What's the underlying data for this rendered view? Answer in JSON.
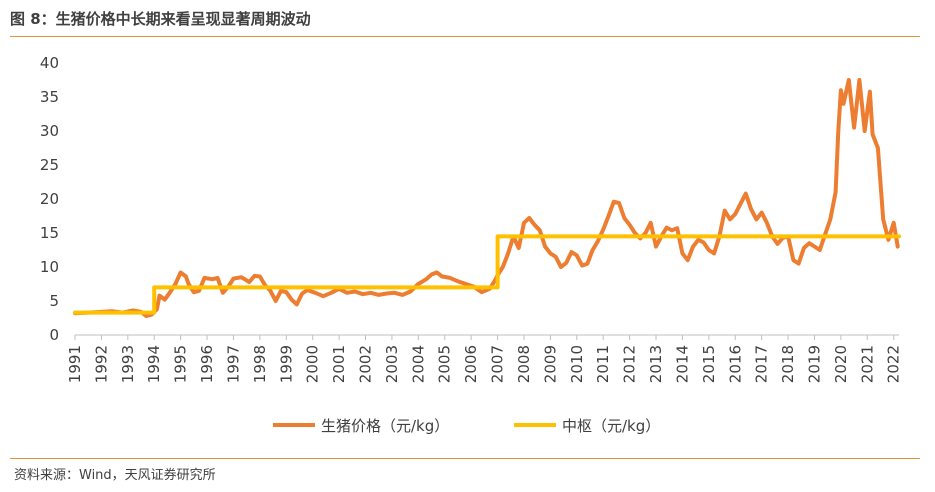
{
  "title": "图 8：生猪价格中长期来看呈现显著周期波动",
  "source": "资料来源：Wind，天风证券研究所",
  "colors": {
    "price": "#ED7D31",
    "center": "#FFC000",
    "axis": "#BFBFBF",
    "rule": "#D79B32"
  },
  "chart_data": {
    "type": "line",
    "ylim": [
      0,
      40
    ],
    "yticks": [
      0,
      5,
      10,
      15,
      20,
      25,
      30,
      35,
      40
    ],
    "xlim": [
      1991,
      2022.2
    ],
    "xticks": [
      "1991",
      "1992",
      "1993",
      "1994",
      "1995",
      "1996",
      "1997",
      "1998",
      "1999",
      "2000",
      "2001",
      "2002",
      "2003",
      "2004",
      "2005",
      "2006",
      "2007",
      "2008",
      "2009",
      "2010",
      "2011",
      "2012",
      "2013",
      "2014",
      "2015",
      "2016",
      "2017",
      "2018",
      "2019",
      "2020",
      "2021",
      "2022"
    ],
    "grid": false,
    "legend_position": "bottom",
    "series": [
      {
        "name": "生猪价格（元/kg）",
        "color": "#ED7D31",
        "points": [
          [
            1991.0,
            3.2
          ],
          [
            1991.5,
            3.3
          ],
          [
            1992.0,
            3.4
          ],
          [
            1992.4,
            3.5
          ],
          [
            1992.8,
            3.3
          ],
          [
            1993.2,
            3.6
          ],
          [
            1993.5,
            3.4
          ],
          [
            1993.7,
            2.8
          ],
          [
            1993.9,
            3.0
          ],
          [
            1994.1,
            3.8
          ],
          [
            1994.2,
            5.8
          ],
          [
            1994.4,
            5.2
          ],
          [
            1994.6,
            6.3
          ],
          [
            1994.8,
            7.5
          ],
          [
            1995.0,
            9.2
          ],
          [
            1995.2,
            8.6
          ],
          [
            1995.3,
            7.5
          ],
          [
            1995.5,
            6.3
          ],
          [
            1995.7,
            6.5
          ],
          [
            1995.9,
            8.4
          ],
          [
            1996.2,
            8.2
          ],
          [
            1996.4,
            8.4
          ],
          [
            1996.6,
            6.2
          ],
          [
            1996.8,
            7.1
          ],
          [
            1997.0,
            8.3
          ],
          [
            1997.3,
            8.5
          ],
          [
            1997.6,
            7.8
          ],
          [
            1997.8,
            8.7
          ],
          [
            1998.0,
            8.6
          ],
          [
            1998.2,
            7.3
          ],
          [
            1998.4,
            6.5
          ],
          [
            1998.6,
            5.0
          ],
          [
            1998.8,
            6.5
          ],
          [
            1999.0,
            6.3
          ],
          [
            1999.2,
            5.2
          ],
          [
            1999.4,
            4.5
          ],
          [
            1999.6,
            6.1
          ],
          [
            1999.8,
            6.6
          ],
          [
            2000.1,
            6.2
          ],
          [
            2000.4,
            5.7
          ],
          [
            2000.7,
            6.2
          ],
          [
            2001.0,
            6.8
          ],
          [
            2001.3,
            6.2
          ],
          [
            2001.6,
            6.4
          ],
          [
            2001.9,
            6.0
          ],
          [
            2002.2,
            6.2
          ],
          [
            2002.5,
            5.9
          ],
          [
            2002.8,
            6.1
          ],
          [
            2003.1,
            6.2
          ],
          [
            2003.4,
            5.9
          ],
          [
            2003.7,
            6.4
          ],
          [
            2004.0,
            7.5
          ],
          [
            2004.3,
            8.2
          ],
          [
            2004.5,
            8.9
          ],
          [
            2004.7,
            9.2
          ],
          [
            2004.9,
            8.6
          ],
          [
            2005.2,
            8.4
          ],
          [
            2005.5,
            7.9
          ],
          [
            2005.8,
            7.5
          ],
          [
            2006.1,
            7.1
          ],
          [
            2006.4,
            6.3
          ],
          [
            2006.7,
            6.8
          ],
          [
            2006.9,
            8.0
          ],
          [
            2007.0,
            8.8
          ],
          [
            2007.2,
            10.0
          ],
          [
            2007.4,
            12.0
          ],
          [
            2007.6,
            14.5
          ],
          [
            2007.8,
            12.8
          ],
          [
            2008.0,
            16.5
          ],
          [
            2008.2,
            17.2
          ],
          [
            2008.4,
            16.2
          ],
          [
            2008.6,
            15.4
          ],
          [
            2008.8,
            13.0
          ],
          [
            2009.0,
            12.0
          ],
          [
            2009.2,
            11.5
          ],
          [
            2009.4,
            10.0
          ],
          [
            2009.6,
            10.6
          ],
          [
            2009.8,
            12.2
          ],
          [
            2010.0,
            11.7
          ],
          [
            2010.2,
            10.2
          ],
          [
            2010.4,
            10.5
          ],
          [
            2010.6,
            12.5
          ],
          [
            2010.8,
            13.8
          ],
          [
            2011.0,
            15.5
          ],
          [
            2011.2,
            17.5
          ],
          [
            2011.4,
            19.6
          ],
          [
            2011.6,
            19.4
          ],
          [
            2011.8,
            17.2
          ],
          [
            2012.0,
            16.2
          ],
          [
            2012.2,
            15.0
          ],
          [
            2012.4,
            14.2
          ],
          [
            2012.6,
            15.0
          ],
          [
            2012.8,
            16.5
          ],
          [
            2013.0,
            13.0
          ],
          [
            2013.2,
            14.5
          ],
          [
            2013.4,
            15.8
          ],
          [
            2013.6,
            15.4
          ],
          [
            2013.8,
            15.7
          ],
          [
            2014.0,
            12.0
          ],
          [
            2014.2,
            11.0
          ],
          [
            2014.4,
            13.0
          ],
          [
            2014.6,
            14.0
          ],
          [
            2014.8,
            13.6
          ],
          [
            2015.0,
            12.5
          ],
          [
            2015.2,
            12.0
          ],
          [
            2015.4,
            14.5
          ],
          [
            2015.6,
            18.3
          ],
          [
            2015.8,
            17.0
          ],
          [
            2016.0,
            17.8
          ],
          [
            2016.2,
            19.3
          ],
          [
            2016.4,
            20.8
          ],
          [
            2016.6,
            18.5
          ],
          [
            2016.8,
            17.0
          ],
          [
            2017.0,
            18.0
          ],
          [
            2017.2,
            16.5
          ],
          [
            2017.4,
            14.5
          ],
          [
            2017.6,
            13.4
          ],
          [
            2017.8,
            14.3
          ],
          [
            2018.0,
            14.5
          ],
          [
            2018.2,
            11.0
          ],
          [
            2018.4,
            10.5
          ],
          [
            2018.6,
            12.8
          ],
          [
            2018.8,
            13.5
          ],
          [
            2019.0,
            13.0
          ],
          [
            2019.2,
            12.5
          ],
          [
            2019.4,
            14.8
          ],
          [
            2019.6,
            17.0
          ],
          [
            2019.8,
            21.0
          ],
          [
            2019.9,
            30.0
          ],
          [
            2020.0,
            36.0
          ],
          [
            2020.1,
            34.0
          ],
          [
            2020.3,
            37.5
          ],
          [
            2020.5,
            30.5
          ],
          [
            2020.7,
            37.5
          ],
          [
            2020.9,
            30.0
          ],
          [
            2021.1,
            35.8
          ],
          [
            2021.2,
            29.5
          ],
          [
            2021.4,
            27.5
          ],
          [
            2021.6,
            17.0
          ],
          [
            2021.8,
            14.0
          ],
          [
            2022.0,
            16.5
          ],
          [
            2022.15,
            13.0
          ]
        ]
      },
      {
        "name": "中枢（元/kg）",
        "color": "#FFC000",
        "points": [
          [
            1991.0,
            3.3
          ],
          [
            1994.0,
            3.3
          ],
          [
            1994.0,
            7.0
          ],
          [
            2007.0,
            7.0
          ],
          [
            2007.0,
            14.5
          ],
          [
            2022.2,
            14.5
          ]
        ]
      }
    ]
  }
}
